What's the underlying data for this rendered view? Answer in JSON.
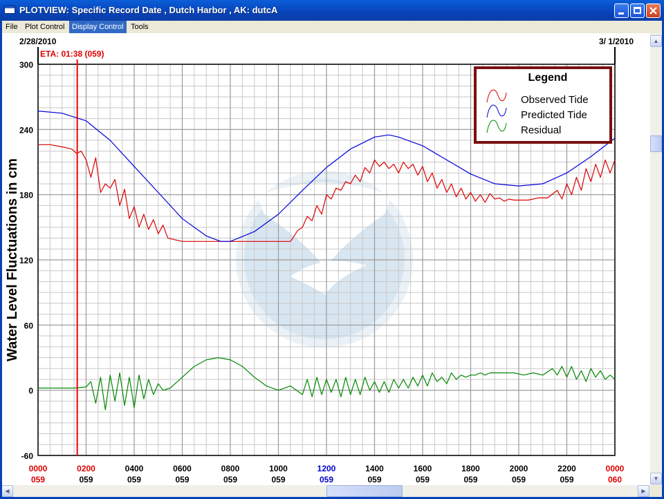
{
  "window": {
    "title": "PLOTVIEW: Specific Record Date , Dutch Harbor , AK: dutcA"
  },
  "menu": {
    "items": [
      "File",
      "Plot Control",
      "Display Control",
      "Tools"
    ],
    "active_index": 2
  },
  "plot": {
    "start_date": "2/28/2010",
    "end_date": "3/ 1/2010",
    "eta_label": "ETA: 01:38 (059)"
  },
  "colors": {
    "observed": "#dd0000",
    "predicted": "#0000dd",
    "residual": "#008800",
    "eta_line": "#ee0000",
    "legend_border": "#7a1010",
    "grid": "#9a9a9a"
  },
  "chart_data": {
    "type": "line",
    "ylabel": "Water Level Fluctuations in cm",
    "ylim": [
      -60,
      300
    ],
    "yticks": [
      300,
      240,
      180,
      120,
      60,
      0,
      -60
    ],
    "xlim": [
      0,
      24
    ],
    "xticks": [
      {
        "time": "0000",
        "day": "059",
        "color": "#dd0000"
      },
      {
        "time": "0200",
        "day": "059",
        "color": "#dd0000"
      },
      {
        "time": "0400",
        "day": "059",
        "color": "#000000"
      },
      {
        "time": "0600",
        "day": "059",
        "color": "#000000"
      },
      {
        "time": "0800",
        "day": "059",
        "color": "#000000"
      },
      {
        "time": "1000",
        "day": "059",
        "color": "#000000"
      },
      {
        "time": "1200",
        "day": "059",
        "color": "#0000cc"
      },
      {
        "time": "1400",
        "day": "059",
        "color": "#000000"
      },
      {
        "time": "1600",
        "day": "059",
        "color": "#000000"
      },
      {
        "time": "1800",
        "day": "059",
        "color": "#000000"
      },
      {
        "time": "2000",
        "day": "059",
        "color": "#000000"
      },
      {
        "time": "2200",
        "day": "059",
        "color": "#000000"
      },
      {
        "time": "0000",
        "day": "060",
        "color": "#dd0000"
      }
    ],
    "eta_hour": 1.63,
    "grid": true,
    "legend": {
      "title": "Legend",
      "placement": "top-right",
      "entries": [
        "Observed Tide",
        "Predicted Tide",
        "Residual"
      ]
    },
    "series": [
      {
        "name": "Observed Tide",
        "x": [
          0,
          0.5,
          1.0,
          1.4,
          1.6,
          1.8,
          2.0,
          2.2,
          2.4,
          2.6,
          2.8,
          3.0,
          3.2,
          3.4,
          3.6,
          3.8,
          4.0,
          4.2,
          4.4,
          4.6,
          4.8,
          5.0,
          5.2,
          5.4,
          5.6,
          6.0,
          7.0,
          8.0,
          9.0,
          10.0,
          10.5,
          10.6,
          10.8,
          11.0,
          11.2,
          11.4,
          11.6,
          11.8,
          12.0,
          12.2,
          12.4,
          12.6,
          12.8,
          13.0,
          13.2,
          13.4,
          13.6,
          13.8,
          14.0,
          14.2,
          14.4,
          14.6,
          14.8,
          15.0,
          15.2,
          15.4,
          15.6,
          15.8,
          16.0,
          16.2,
          16.4,
          16.6,
          16.8,
          17.0,
          17.2,
          17.4,
          17.6,
          17.8,
          18.0,
          18.2,
          18.4,
          18.6,
          18.8,
          19.0,
          19.2,
          19.4,
          19.6,
          19.8,
          20.0,
          20.4,
          20.8,
          21.2,
          21.6,
          21.8,
          22.0,
          22.2,
          22.4,
          22.6,
          22.8,
          23.0,
          23.2,
          23.4,
          23.6,
          23.8,
          24.0
        ],
        "values": [
          226,
          226,
          224,
          222,
          218,
          220,
          212,
          196,
          214,
          182,
          190,
          186,
          194,
          170,
          185,
          158,
          169,
          150,
          162,
          148,
          157,
          144,
          152,
          140,
          139,
          137,
          137,
          137,
          137,
          137,
          137,
          140,
          147,
          150,
          160,
          156,
          170,
          162,
          180,
          176,
          186,
          184,
          192,
          190,
          198,
          192,
          205,
          200,
          212,
          206,
          210,
          204,
          208,
          200,
          210,
          204,
          208,
          198,
          206,
          192,
          200,
          186,
          194,
          182,
          190,
          178,
          186,
          176,
          182,
          174,
          180,
          173,
          181,
          176,
          177,
          174,
          176,
          175,
          175,
          175,
          177,
          177,
          184,
          176,
          190,
          180,
          196,
          184,
          204,
          192,
          208,
          196,
          212,
          200,
          212
        ],
        "color": "#dd0000"
      },
      {
        "name": "Predicted Tide",
        "x": [
          0,
          1,
          2,
          3,
          4,
          5,
          6,
          7,
          7.6,
          8,
          9,
          10,
          11,
          12,
          13,
          14,
          14.6,
          15,
          16,
          17,
          18,
          19,
          20,
          21,
          22,
          23,
          24
        ],
        "values": [
          257,
          255,
          248,
          230,
          206,
          182,
          158,
          142,
          137,
          137,
          146,
          162,
          184,
          205,
          222,
          233,
          235,
          233,
          225,
          212,
          199,
          190,
          188,
          190,
          200,
          215,
          232
        ],
        "color": "#0000dd"
      },
      {
        "name": "Residual",
        "x": [
          0,
          0.5,
          1,
          1.5,
          2,
          2.2,
          2.4,
          2.6,
          2.8,
          3.0,
          3.2,
          3.4,
          3.6,
          3.8,
          4.0,
          4.2,
          4.4,
          4.6,
          4.8,
          5.0,
          5.2,
          5.5,
          6,
          6.5,
          7,
          7.5,
          8,
          8.5,
          9,
          9.5,
          10,
          10.5,
          11,
          11.2,
          11.4,
          11.6,
          11.8,
          12,
          12.2,
          12.4,
          12.6,
          12.8,
          13,
          13.2,
          13.4,
          13.6,
          13.8,
          14,
          14.2,
          14.4,
          14.6,
          14.8,
          15,
          15.2,
          15.4,
          15.6,
          15.8,
          16,
          16.2,
          16.4,
          16.6,
          16.8,
          17,
          17.2,
          17.4,
          17.6,
          17.8,
          18,
          18.2,
          18.4,
          18.6,
          18.8,
          19,
          19.4,
          19.8,
          20.2,
          20.6,
          21,
          21.4,
          21.6,
          21.8,
          22,
          22.2,
          22.4,
          22.6,
          22.8,
          23,
          23.2,
          23.4,
          23.6,
          23.8,
          24
        ],
        "values": [
          2,
          2,
          2,
          2,
          3,
          8,
          -12,
          12,
          -18,
          14,
          -10,
          16,
          -14,
          12,
          -16,
          14,
          -8,
          10,
          -4,
          6,
          0,
          2,
          12,
          22,
          28,
          30,
          28,
          22,
          12,
          4,
          0,
          4,
          -4,
          10,
          -6,
          12,
          -4,
          10,
          -2,
          10,
          -6,
          12,
          -4,
          10,
          -4,
          12,
          0,
          8,
          -2,
          8,
          -2,
          10,
          2,
          10,
          2,
          12,
          4,
          14,
          4,
          16,
          8,
          12,
          6,
          16,
          10,
          14,
          12,
          14,
          14,
          16,
          14,
          16,
          16,
          16,
          16,
          14,
          16,
          14,
          20,
          14,
          22,
          12,
          22,
          10,
          18,
          8,
          20,
          12,
          18,
          10,
          14,
          10
        ],
        "color": "#008800"
      }
    ]
  }
}
